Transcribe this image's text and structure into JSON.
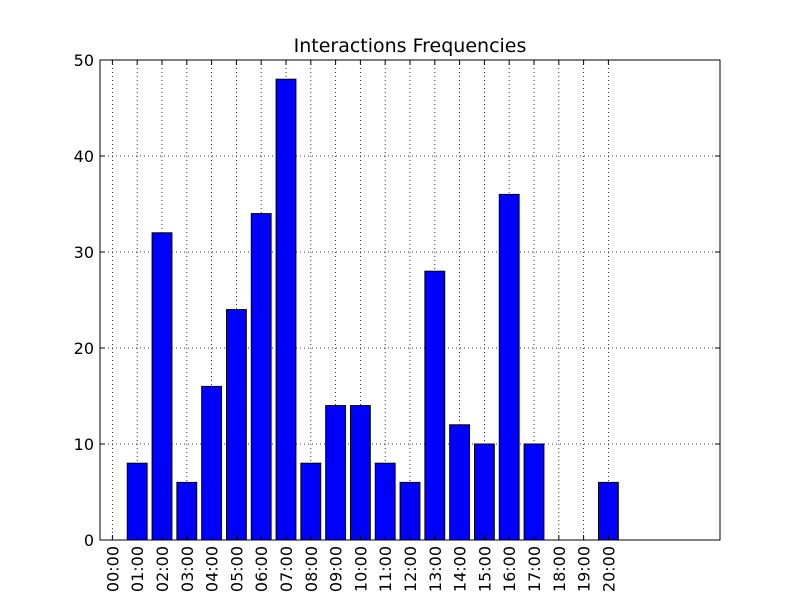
{
  "chart_data": {
    "type": "bar",
    "title": "Interactions Frequencies",
    "xlabel": "",
    "ylabel": "",
    "categories": [
      "00:00",
      "01:00",
      "02:00",
      "03:00",
      "04:00",
      "05:00",
      "06:00",
      "07:00",
      "08:00",
      "09:00",
      "10:00",
      "11:00",
      "12:00",
      "13:00",
      "14:00",
      "15:00",
      "16:00",
      "17:00",
      "18:00",
      "19:00",
      "20:00"
    ],
    "values": [
      0,
      8,
      32,
      6,
      16,
      24,
      34,
      48,
      8,
      14,
      14,
      8,
      6,
      28,
      12,
      10,
      36,
      10,
      0,
      0,
      6
    ],
    "ylim": [
      0,
      50
    ],
    "yticks": [
      0,
      10,
      20,
      30,
      40,
      50
    ],
    "xlim": [
      -0.5,
      24.5
    ],
    "grid": true,
    "bar_color": "#0000ff",
    "edge_color": "#000000"
  }
}
